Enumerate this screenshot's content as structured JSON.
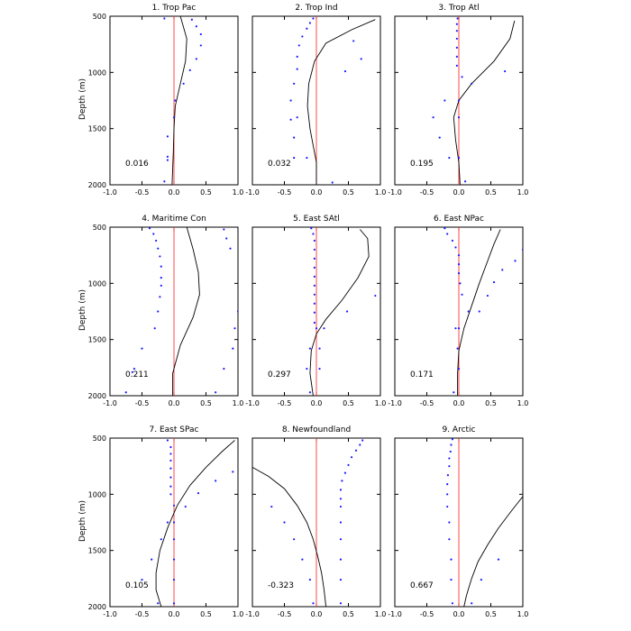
{
  "figure": {
    "ylabel": "Depth (m)",
    "colors": {
      "profile": "#000000",
      "zero_line": "#ff3333",
      "points": "#1a1aff"
    }
  },
  "chart_data": [
    {
      "type": "line",
      "title": "1. Trop Pac",
      "correlation_label": "0.016",
      "xlim": [
        -1,
        1
      ],
      "ylim": [
        500,
        2000
      ],
      "xticks": [
        "-1.0",
        "-0.5",
        "0.0",
        "0.5",
        "1.0"
      ],
      "yticks": [
        "500",
        "1000",
        "1500",
        "2000"
      ],
      "profile": {
        "x": [
          0.1,
          0.2,
          0.18,
          0.1,
          0.02,
          0.0,
          -0.01,
          -0.02,
          -0.03
        ],
        "depth": [
          500,
          700,
          900,
          1100,
          1300,
          1500,
          1700,
          1850,
          2000
        ]
      },
      "points": {
        "x": [
          -0.15,
          0.28,
          0.35,
          0.42,
          0.42,
          0.35,
          0.25,
          0.15,
          0.02,
          0.0,
          -0.1,
          -0.1,
          -0.1,
          -0.15
        ],
        "depth": [
          520,
          530,
          590,
          660,
          760,
          880,
          980,
          1100,
          1250,
          1400,
          1570,
          1750,
          1780,
          1970
        ]
      }
    },
    {
      "type": "line",
      "title": "2. Trop Ind",
      "correlation_label": "0.032",
      "xlim": [
        -1,
        1
      ],
      "ylim": [
        500,
        2000
      ],
      "xticks": [
        "-1.0",
        "-0.5",
        "0.0",
        "0.5",
        "1.0"
      ],
      "yticks": [
        "500",
        "1000",
        "1500",
        "2000"
      ],
      "profile": {
        "x": [
          0.92,
          0.55,
          0.15,
          -0.03,
          -0.12,
          -0.14,
          -0.1,
          -0.05,
          0.0,
          0.0
        ],
        "depth": [
          530,
          620,
          740,
          900,
          1100,
          1300,
          1500,
          1650,
          1800,
          2000
        ]
      },
      "points": {
        "x": [
          -0.05,
          -0.1,
          -0.15,
          -0.22,
          -0.27,
          -0.3,
          -0.3,
          -0.35,
          -0.4,
          -0.3,
          -0.4,
          -0.35,
          -0.35,
          -0.15,
          0.25,
          0.45,
          0.7,
          0.58
        ],
        "depth": [
          520,
          560,
          610,
          680,
          760,
          860,
          970,
          1100,
          1250,
          1400,
          1420,
          1580,
          1760,
          1760,
          1980,
          990,
          880,
          720
        ]
      }
    },
    {
      "type": "line",
      "title": "3. Trop Atl",
      "correlation_label": "0.195",
      "xlim": [
        -1,
        1
      ],
      "ylim": [
        500,
        2000
      ],
      "xticks": [
        "-1.0",
        "-0.5",
        "0.0",
        "0.5",
        "1.0"
      ],
      "yticks": [
        "500",
        "1000",
        "1500",
        "2000"
      ],
      "profile": {
        "x": [
          0.87,
          0.8,
          0.55,
          0.2,
          0.0,
          -0.08,
          -0.05,
          0.0,
          0.02
        ],
        "depth": [
          540,
          700,
          900,
          1100,
          1250,
          1400,
          1600,
          1800,
          2000
        ]
      },
      "points": {
        "x": [
          -0.02,
          -0.03,
          -0.03,
          -0.03,
          -0.03,
          -0.03,
          -0.03,
          0.05,
          0.2,
          0.72,
          -0.22,
          0.0,
          -0.4,
          0.0,
          -0.3,
          -0.15,
          0.0,
          0.1
        ],
        "depth": [
          520,
          570,
          630,
          700,
          780,
          860,
          940,
          1040,
          1100,
          990,
          1250,
          1250,
          1400,
          1400,
          1580,
          1760,
          1760,
          1970
        ]
      }
    },
    {
      "type": "line",
      "title": "4. Maritime Con",
      "correlation_label": "0.211",
      "xlim": [
        -1,
        1
      ],
      "ylim": [
        500,
        2000
      ],
      "xticks": [
        "-1.0",
        "-0.5",
        "0.0",
        "0.5",
        "1.0"
      ],
      "yticks": [
        "500",
        "1000",
        "1500",
        "2000"
      ],
      "profile": {
        "x": [
          0.2,
          0.3,
          0.38,
          0.4,
          0.3,
          0.1,
          -0.02,
          -0.02
        ],
        "depth": [
          500,
          700,
          900,
          1100,
          1300,
          1550,
          1800,
          2000
        ]
      },
      "points": {
        "x": [
          -0.38,
          -0.32,
          -0.28,
          -0.25,
          -0.22,
          -0.2,
          -0.2,
          -0.2,
          -0.22,
          -0.25,
          -0.3,
          -0.5,
          -0.62,
          -0.65,
          -0.75,
          0.78,
          0.82,
          0.88,
          1.0,
          0.95,
          0.92,
          0.78,
          0.65
        ],
        "depth": [
          510,
          560,
          620,
          690,
          760,
          850,
          950,
          1020,
          1120,
          1250,
          1400,
          1580,
          1760,
          1790,
          1970,
          520,
          600,
          690,
          1250,
          1400,
          1580,
          1760,
          1970
        ]
      }
    },
    {
      "type": "line",
      "title": "5. East SAtl",
      "correlation_label": "0.297",
      "xlim": [
        -1,
        1
      ],
      "ylim": [
        500,
        2000
      ],
      "xticks": [
        "-1.0",
        "-0.5",
        "0.0",
        "0.5",
        "1.0"
      ],
      "yticks": [
        "500",
        "1000",
        "1500",
        "2000"
      ],
      "profile": {
        "x": [
          0.68,
          0.8,
          0.82,
          0.65,
          0.4,
          0.15,
          0.0,
          -0.08,
          -0.1,
          -0.05
        ],
        "depth": [
          520,
          600,
          760,
          950,
          1150,
          1320,
          1450,
          1600,
          1800,
          2000
        ]
      },
      "points": {
        "x": [
          -0.08,
          -0.05,
          -0.03,
          -0.03,
          -0.03,
          -0.03,
          -0.03,
          -0.03,
          -0.03,
          -0.03,
          -0.03,
          -0.03,
          0.0,
          0.12,
          0.48,
          0.92,
          -0.1,
          0.05,
          -0.15,
          0.05,
          -0.1
        ],
        "depth": [
          510,
          560,
          620,
          700,
          780,
          860,
          940,
          1020,
          1100,
          1180,
          1260,
          1350,
          1400,
          1400,
          1250,
          1110,
          1580,
          1580,
          1760,
          1760,
          1970
        ]
      }
    },
    {
      "type": "line",
      "title": "6. East NPac",
      "correlation_label": "0.171",
      "xlim": [
        -1,
        1
      ],
      "ylim": [
        500,
        2000
      ],
      "xticks": [
        "-1.0",
        "-0.5",
        "0.0",
        "0.5",
        "1.0"
      ],
      "yticks": [
        "500",
        "1000",
        "1500",
        "2000"
      ],
      "profile": {
        "x": [
          0.65,
          0.55,
          0.45,
          0.32,
          0.2,
          0.08,
          0.0,
          -0.02,
          -0.02
        ],
        "depth": [
          520,
          650,
          800,
          1000,
          1200,
          1400,
          1600,
          1800,
          2000
        ]
      },
      "points": {
        "x": [
          -0.22,
          -0.18,
          -0.1,
          -0.05,
          0.0,
          0.0,
          0.0,
          0.02,
          0.05,
          -0.05,
          0.0,
          -0.02,
          0.0,
          -0.08,
          0.15,
          0.32,
          0.45,
          0.55,
          0.68,
          0.88,
          1.0
        ],
        "depth": [
          510,
          560,
          620,
          680,
          750,
          830,
          910,
          1000,
          1100,
          1400,
          1400,
          1580,
          1760,
          1970,
          1250,
          1250,
          1110,
          990,
          880,
          800,
          700
        ]
      }
    },
    {
      "type": "line",
      "title": "7. East SPac",
      "correlation_label": "0.105",
      "xlim": [
        -1,
        1
      ],
      "ylim": [
        500,
        2000
      ],
      "xticks": [
        "-1.0",
        "-0.5",
        "0.0",
        "0.5",
        "1.0"
      ],
      "yticks": [
        "500",
        "1000",
        "1500",
        "2000"
      ],
      "profile": {
        "x": [
          0.95,
          0.75,
          0.5,
          0.25,
          0.05,
          -0.1,
          -0.22,
          -0.28,
          -0.28,
          -0.2
        ],
        "depth": [
          520,
          620,
          760,
          920,
          1100,
          1300,
          1500,
          1700,
          1850,
          2000
        ]
      },
      "points": {
        "x": [
          -0.1,
          -0.05,
          -0.05,
          -0.05,
          -0.05,
          -0.05,
          -0.05,
          -0.05,
          0.0,
          0.0,
          0.0,
          0.0,
          0.0,
          0.0,
          0.18,
          0.38,
          0.65,
          0.92,
          -0.1,
          -0.2,
          -0.35,
          -0.5,
          -0.25
        ],
        "depth": [
          520,
          580,
          640,
          700,
          770,
          850,
          930,
          1000,
          1100,
          1250,
          1400,
          1580,
          1760,
          1970,
          1110,
          990,
          880,
          800,
          1250,
          1400,
          1580,
          1760,
          1970
        ]
      }
    },
    {
      "type": "line",
      "title": "8. Newfoundland",
      "correlation_label": "-0.323",
      "xlim": [
        -1,
        1
      ],
      "ylim": [
        500,
        2000
      ],
      "xticks": [
        "-1.0",
        "-0.5",
        "0.0",
        "0.5",
        "1.0"
      ],
      "yticks": [
        "500",
        "1000",
        "1500",
        "2000"
      ],
      "profile": {
        "x": [
          -1.0,
          -0.75,
          -0.5,
          -0.3,
          -0.15,
          -0.05,
          0.02,
          0.08,
          0.12,
          0.15
        ],
        "depth": [
          760,
          840,
          950,
          1100,
          1250,
          1400,
          1550,
          1700,
          1850,
          2000
        ]
      },
      "points": {
        "x": [
          0.72,
          0.68,
          0.62,
          0.55,
          0.5,
          0.45,
          0.4,
          0.38,
          0.38,
          0.38,
          0.38,
          0.38,
          0.38,
          0.38,
          0.38,
          -0.7,
          -0.5,
          -0.35,
          -0.22,
          -0.1,
          -0.05
        ],
        "depth": [
          520,
          560,
          610,
          670,
          740,
          810,
          880,
          960,
          1040,
          1110,
          1250,
          1400,
          1580,
          1760,
          1970,
          1110,
          1250,
          1400,
          1580,
          1760,
          1970
        ]
      }
    },
    {
      "type": "line",
      "title": "9. Arctic",
      "correlation_label": "0.667",
      "xlim": [
        -1,
        1
      ],
      "ylim": [
        500,
        2000
      ],
      "xticks": [
        "-1.0",
        "-0.5",
        "0.0",
        "0.5",
        "1.0"
      ],
      "yticks": [
        "500",
        "1000",
        "1500",
        "2000"
      ],
      "profile": {
        "x": [
          1.0,
          0.82,
          0.62,
          0.45,
          0.3,
          0.2,
          0.12,
          0.08
        ],
        "depth": [
          1020,
          1150,
          1300,
          1450,
          1600,
          1750,
          1900,
          2000
        ]
      },
      "points": {
        "x": [
          -0.1,
          -0.12,
          -0.13,
          -0.15,
          -0.15,
          -0.17,
          -0.18,
          -0.18,
          -0.18,
          -0.15,
          -0.15,
          -0.12,
          -0.12,
          -0.1,
          0.2,
          0.35,
          0.62
        ],
        "depth": [
          510,
          560,
          620,
          680,
          750,
          830,
          910,
          1000,
          1110,
          1250,
          1400,
          1580,
          1760,
          1970,
          1970,
          1760,
          1580
        ]
      }
    }
  ]
}
